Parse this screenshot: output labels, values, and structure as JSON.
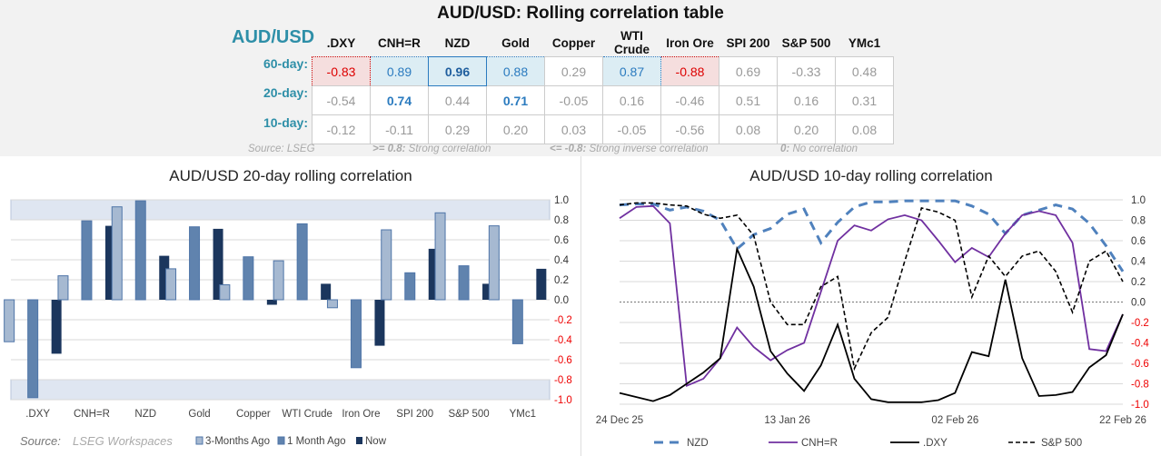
{
  "table": {
    "title": "AUD/USD: Rolling correlation table",
    "row_header": "AUD/USD",
    "columns": [
      ".DXY",
      "CNH=R",
      "NZD",
      "Gold",
      "Copper",
      "WTI Crude",
      "Iron Ore",
      "SPI 200",
      "S&P 500",
      "YMc1"
    ],
    "rows": [
      {
        "label": "60-day:",
        "values": [
          "-0.83",
          "0.89",
          "0.96",
          "0.88",
          "0.29",
          "0.87",
          "-0.88",
          "0.69",
          "-0.33",
          "0.48"
        ],
        "styles": [
          "neg",
          "pos",
          "best",
          "pos",
          "",
          "pos",
          "neg",
          "",
          "",
          ""
        ]
      },
      {
        "label": "20-day:",
        "values": [
          "-0.54",
          "0.74",
          "0.44",
          "0.71",
          "-0.05",
          "0.16",
          "-0.46",
          "0.51",
          "0.16",
          "0.31"
        ],
        "styles": [
          "",
          "blue",
          "",
          "blue",
          "",
          "",
          "",
          "",
          "",
          ""
        ]
      },
      {
        "label": "10-day:",
        "values": [
          "-0.12",
          "-0.11",
          "0.29",
          "0.20",
          "0.03",
          "-0.05",
          "-0.56",
          "0.08",
          "0.20",
          "0.08"
        ],
        "styles": [
          "",
          "",
          "",
          "",
          "",
          "",
          "",
          "",
          "",
          ""
        ]
      }
    ],
    "notes": {
      "source": "Source: LSEG",
      "n1k": ">= 0.8:",
      "n1": "Strong correlation",
      "n2k": "<= -0.8:",
      "n2": "Strong inverse correlation",
      "n3k": "0:",
      "n3": "No correlation"
    }
  },
  "chart_data": [
    {
      "type": "bar",
      "title": "AUD/USD 20-day rolling correlation",
      "categories": [
        ".DXY",
        "CNH=R",
        "NZD",
        "Gold",
        "Copper",
        "WTI Crude",
        "Iron Ore",
        "SPI 200",
        "S&P 500",
        "YMc1"
      ],
      "series": [
        {
          "name": "3-Months Ago",
          "color": "#a6b9d1",
          "values": [
            -0.42,
            0.24,
            0.93,
            0.31,
            0.15,
            0.39,
            -0.08,
            0.7,
            0.87,
            0.74
          ]
        },
        {
          "name": "1 Month Ago",
          "color": "#6083ae",
          "values": [
            -0.98,
            0.79,
            0.99,
            0.73,
            0.43,
            0.76,
            -0.68,
            0.27,
            0.34,
            -0.44
          ]
        },
        {
          "name": "Now",
          "color": "#1b365d",
          "values": [
            -0.54,
            0.74,
            0.44,
            0.71,
            -0.05,
            0.16,
            -0.46,
            0.51,
            0.16,
            0.31
          ]
        }
      ],
      "ylim": [
        -1,
        1
      ],
      "yticks": [
        "1.0",
        "0.8",
        "0.6",
        "0.4",
        "0.2",
        "0.0",
        "-0.2",
        "-0.4",
        "-0.6",
        "-0.8",
        "-1.0"
      ],
      "shaded_bands": [
        [
          0.8,
          1.0
        ],
        [
          -1.0,
          -0.8
        ]
      ],
      "grid": true,
      "legend": "bottom",
      "source": "Source:",
      "source_name": "LSEG Workspaces"
    },
    {
      "type": "line",
      "title": "AUD/USD 10-day rolling correlation",
      "x_start": "24 Dec 25",
      "x_end": "22 Feb 26",
      "x_step_days": 2,
      "xticks": [
        "24 Dec 25",
        "13 Jan 26",
        "02 Feb 26",
        "22 Feb 26"
      ],
      "ylim": [
        -1,
        1
      ],
      "yticks": [
        "1.0",
        "0.8",
        "0.6",
        "0.4",
        "0.2",
        "0.0",
        "-0.2",
        "-0.4",
        "-0.6",
        "-0.8",
        "-1.0"
      ],
      "legend": "bottom",
      "series": [
        {
          "name": "NZD",
          "color": "#4f81bd",
          "style": "dashed-thick",
          "values": [
            0.95,
            0.96,
            0.96,
            0.9,
            0.93,
            0.89,
            0.8,
            0.52,
            0.66,
            0.72,
            0.86,
            0.91,
            0.58,
            0.78,
            0.93,
            0.98,
            0.98,
            0.99,
            0.99,
            0.99,
            0.99,
            0.94,
            0.86,
            0.67,
            0.85,
            0.9,
            0.95,
            0.91,
            0.77,
            0.55,
            0.3
          ]
        },
        {
          "name": "CNH=R",
          "color": "#7030a0",
          "style": "solid",
          "values": [
            0.82,
            0.93,
            0.94,
            0.77,
            -0.82,
            -0.75,
            -0.55,
            -0.25,
            -0.44,
            -0.57,
            -0.47,
            -0.4,
            0.1,
            0.6,
            0.75,
            0.7,
            0.81,
            0.85,
            0.8,
            0.6,
            0.39,
            0.53,
            0.44,
            0.67,
            0.85,
            0.89,
            0.85,
            0.58,
            -0.46,
            -0.48,
            -0.12
          ]
        },
        {
          "name": ".DXY",
          "color": "#000000",
          "style": "solid",
          "values": [
            -0.89,
            -0.93,
            -0.97,
            -0.91,
            -0.8,
            -0.69,
            -0.55,
            0.52,
            0.15,
            -0.48,
            -0.7,
            -0.87,
            -0.62,
            -0.22,
            -0.75,
            -0.95,
            -0.98,
            -0.98,
            -0.98,
            -0.96,
            -0.89,
            -0.49,
            -0.53,
            0.22,
            -0.55,
            -0.92,
            -0.91,
            -0.88,
            -0.64,
            -0.52,
            -0.12
          ]
        },
        {
          "name": "S&P 500",
          "color": "#000000",
          "style": "dashed",
          "values": [
            0.95,
            0.97,
            0.97,
            0.95,
            0.94,
            0.86,
            0.82,
            0.85,
            0.65,
            0.0,
            -0.22,
            -0.22,
            0.15,
            0.25,
            -0.65,
            -0.3,
            -0.15,
            0.4,
            0.92,
            0.88,
            0.8,
            0.05,
            0.45,
            0.25,
            0.45,
            0.5,
            0.3,
            -0.1,
            0.4,
            0.5,
            0.2
          ]
        }
      ]
    }
  ]
}
